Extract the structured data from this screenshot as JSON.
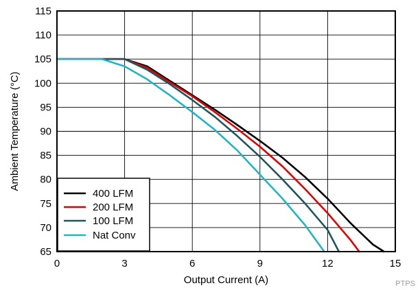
{
  "chart_data": {
    "type": "line",
    "title": "",
    "xlabel": "Output Current (A)",
    "ylabel": "Ambient Temperature (°C)",
    "xlim": [
      0,
      15
    ],
    "ylim": [
      65,
      115
    ],
    "xticks": [
      0,
      3,
      6,
      9,
      12,
      15
    ],
    "yticks": [
      65,
      70,
      75,
      80,
      85,
      90,
      95,
      100,
      105,
      110,
      115
    ],
    "grid": true,
    "legend_position": "bottom-left",
    "series": [
      {
        "name": "400 LFM",
        "color": "#000000",
        "points": [
          [
            0,
            105
          ],
          [
            3,
            105
          ],
          [
            4,
            103.5
          ],
          [
            5,
            100.5
          ],
          [
            6,
            97.5
          ],
          [
            7,
            94.5
          ],
          [
            8,
            91.3
          ],
          [
            9,
            88
          ],
          [
            10,
            84.5
          ],
          [
            11,
            80.5
          ],
          [
            12,
            76
          ],
          [
            13,
            71
          ],
          [
            14,
            66.5
          ],
          [
            14.5,
            65
          ]
        ]
      },
      {
        "name": "200 LFM",
        "color": "#e00000",
        "points": [
          [
            0,
            105
          ],
          [
            3,
            105
          ],
          [
            4,
            103.2
          ],
          [
            5,
            100.2
          ],
          [
            6,
            97.3
          ],
          [
            7,
            94
          ],
          [
            8,
            90.5
          ],
          [
            9,
            86.8
          ],
          [
            10,
            82.7
          ],
          [
            11,
            78
          ],
          [
            12,
            73
          ],
          [
            13,
            67.5
          ],
          [
            13.4,
            65
          ]
        ]
      },
      {
        "name": "100 LFM",
        "color": "#1e5560",
        "points": [
          [
            0,
            105
          ],
          [
            3,
            105
          ],
          [
            4,
            102.8
          ],
          [
            5,
            99.8
          ],
          [
            6,
            96.5
          ],
          [
            7,
            93
          ],
          [
            8,
            89
          ],
          [
            9,
            84.7
          ],
          [
            10,
            80
          ],
          [
            11,
            75
          ],
          [
            12,
            69.5
          ],
          [
            12.5,
            65
          ]
        ]
      },
      {
        "name": "Nat Conv",
        "color": "#1fb5c4",
        "points": [
          [
            0,
            105
          ],
          [
            2,
            105
          ],
          [
            3,
            103.5
          ],
          [
            4,
            100.8
          ],
          [
            5,
            97.5
          ],
          [
            6,
            94
          ],
          [
            7,
            90.3
          ],
          [
            8,
            86
          ],
          [
            9,
            81
          ],
          [
            10,
            76
          ],
          [
            11,
            70.5
          ],
          [
            11.85,
            65
          ]
        ]
      }
    ],
    "watermark": "PTPS"
  }
}
